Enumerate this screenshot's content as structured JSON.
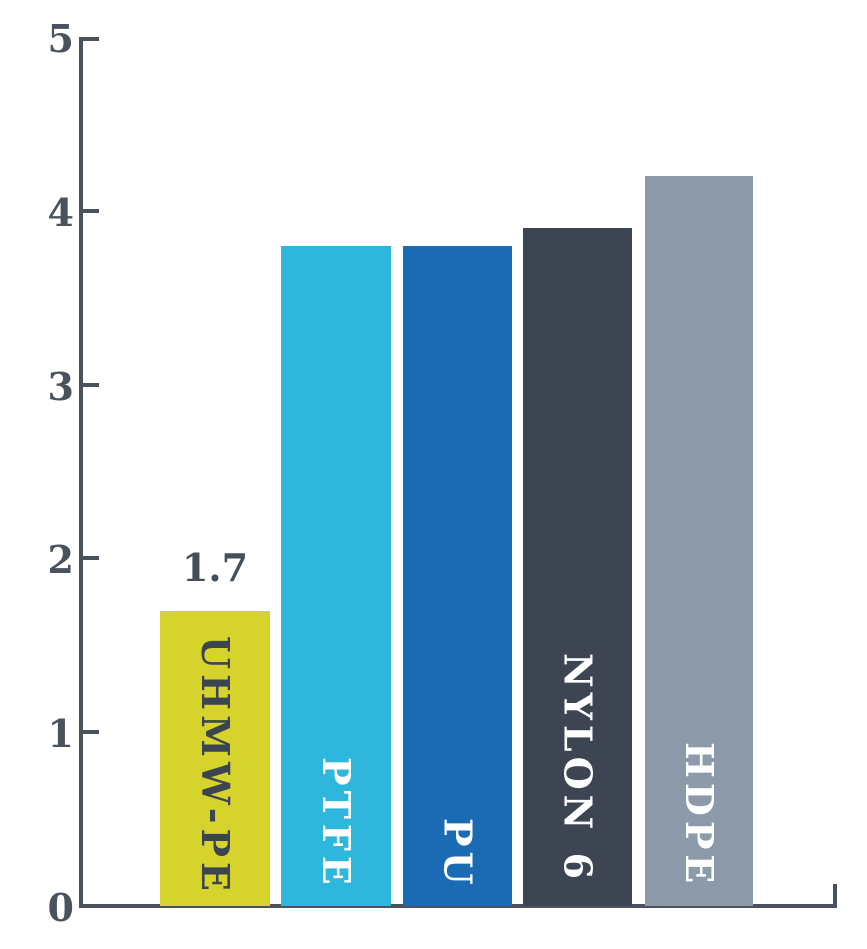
{
  "chart_data": {
    "type": "bar",
    "title": "",
    "xlabel": "",
    "ylabel": "",
    "categories": [
      "UHMW-PE",
      "PTFE",
      "PU",
      "NYLON 6",
      "HDPE"
    ],
    "values": [
      1.7,
      3.8,
      3.8,
      3.9,
      4.2
    ],
    "bar_colors": [
      "#d5d32c",
      "#2fb6dc",
      "#1a6bb4",
      "#3c4551",
      "#8d9aaa"
    ],
    "bar_label_colors": [
      "#3b4551",
      "#ffffff",
      "#ffffff",
      "#ffffff",
      "#ffffff"
    ],
    "value_labels": [
      "1.7",
      "",
      "",
      "",
      ""
    ],
    "value_label_color": "#454f5a",
    "ylim": [
      0,
      5
    ],
    "yticks": [
      0,
      1,
      2,
      3,
      4,
      5
    ],
    "ytick_labels": [
      "0",
      "1",
      "2",
      "3",
      "4",
      "5"
    ],
    "axis_color": "#4a525e",
    "grid": false,
    "legend": "none",
    "orientation": "vertical",
    "bar_label_reading": "top-to-bottom"
  }
}
